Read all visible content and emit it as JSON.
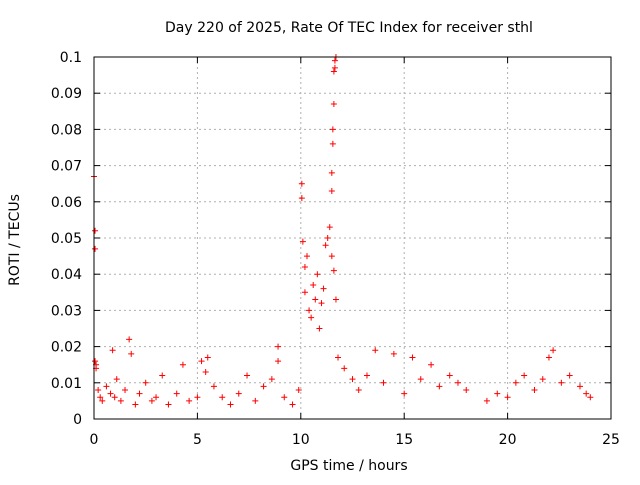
{
  "chart_data": {
    "type": "scatter",
    "title": "Day 220 of 2025, Rate Of TEC Index for receiver sthl",
    "xlabel": "GPS time / hours",
    "ylabel": "ROTI / TECUs",
    "xlim": [
      0,
      25
    ],
    "ylim": [
      0,
      0.1
    ],
    "x_ticks": [
      0,
      5,
      10,
      15,
      20,
      25
    ],
    "x_tick_labels": [
      "0",
      "5",
      "10",
      "15",
      "20",
      "25"
    ],
    "y_ticks": [
      0,
      0.01,
      0.02,
      0.03,
      0.04,
      0.05,
      0.06,
      0.07,
      0.08,
      0.09,
      0.1
    ],
    "y_tick_labels": [
      "0",
      "0.01",
      "0.02",
      "0.03",
      "0.04",
      "0.05",
      "0.06",
      "0.07",
      "0.08",
      "0.09",
      "0.1"
    ],
    "grid": true,
    "marker": "+",
    "marker_color": "#ff0000",
    "series": [
      {
        "points": [
          [
            0.0,
            0.067
          ],
          [
            0.05,
            0.052
          ],
          [
            0.05,
            0.047
          ],
          [
            0.05,
            0.016
          ],
          [
            0.1,
            0.015
          ],
          [
            0.1,
            0.014
          ],
          [
            0.2,
            0.008
          ],
          [
            0.3,
            0.006
          ],
          [
            0.4,
            0.005
          ],
          [
            0.6,
            0.009
          ],
          [
            0.8,
            0.007
          ],
          [
            0.9,
            0.019
          ],
          [
            1.0,
            0.006
          ],
          [
            1.1,
            0.011
          ],
          [
            1.3,
            0.005
          ],
          [
            1.5,
            0.008
          ],
          [
            1.7,
            0.022
          ],
          [
            1.8,
            0.018
          ],
          [
            2.0,
            0.004
          ],
          [
            2.2,
            0.007
          ],
          [
            2.5,
            0.01
          ],
          [
            2.8,
            0.005
          ],
          [
            3.0,
            0.006
          ],
          [
            3.3,
            0.012
          ],
          [
            3.6,
            0.004
          ],
          [
            4.0,
            0.007
          ],
          [
            4.3,
            0.015
          ],
          [
            4.6,
            0.005
          ],
          [
            5.0,
            0.006
          ],
          [
            5.2,
            0.016
          ],
          [
            5.4,
            0.013
          ],
          [
            5.5,
            0.017
          ],
          [
            5.8,
            0.009
          ],
          [
            6.2,
            0.006
          ],
          [
            6.6,
            0.004
          ],
          [
            7.0,
            0.007
          ],
          [
            7.4,
            0.012
          ],
          [
            7.8,
            0.005
          ],
          [
            8.2,
            0.009
          ],
          [
            8.6,
            0.011
          ],
          [
            8.9,
            0.02
          ],
          [
            8.9,
            0.016
          ],
          [
            9.2,
            0.006
          ],
          [
            9.6,
            0.004
          ],
          [
            9.9,
            0.008
          ],
          [
            10.05,
            0.061
          ],
          [
            10.05,
            0.065
          ],
          [
            10.1,
            0.049
          ],
          [
            10.2,
            0.042
          ],
          [
            10.3,
            0.045
          ],
          [
            10.2,
            0.035
          ],
          [
            10.4,
            0.03
          ],
          [
            10.5,
            0.028
          ],
          [
            10.6,
            0.037
          ],
          [
            10.7,
            0.033
          ],
          [
            10.8,
            0.04
          ],
          [
            10.9,
            0.025
          ],
          [
            11.0,
            0.032
          ],
          [
            11.1,
            0.036
          ],
          [
            11.2,
            0.048
          ],
          [
            11.3,
            0.05
          ],
          [
            11.4,
            0.053
          ],
          [
            11.5,
            0.045
          ],
          [
            11.5,
            0.063
          ],
          [
            11.5,
            0.068
          ],
          [
            11.55,
            0.076
          ],
          [
            11.55,
            0.08
          ],
          [
            11.6,
            0.087
          ],
          [
            11.6,
            0.096
          ],
          [
            11.65,
            0.097
          ],
          [
            11.65,
            0.099
          ],
          [
            11.7,
            0.1
          ],
          [
            11.6,
            0.041
          ],
          [
            11.7,
            0.033
          ],
          [
            11.8,
            0.017
          ],
          [
            12.1,
            0.014
          ],
          [
            12.5,
            0.011
          ],
          [
            12.8,
            0.008
          ],
          [
            13.2,
            0.012
          ],
          [
            13.6,
            0.019
          ],
          [
            14.0,
            0.01
          ],
          [
            14.5,
            0.018
          ],
          [
            15.0,
            0.007
          ],
          [
            15.4,
            0.017
          ],
          [
            15.8,
            0.011
          ],
          [
            16.3,
            0.015
          ],
          [
            16.7,
            0.009
          ],
          [
            17.2,
            0.012
          ],
          [
            17.6,
            0.01
          ],
          [
            18.0,
            0.008
          ],
          [
            19.0,
            0.005
          ],
          [
            19.5,
            0.007
          ],
          [
            20.0,
            0.006
          ],
          [
            20.4,
            0.01
          ],
          [
            20.8,
            0.012
          ],
          [
            21.3,
            0.008
          ],
          [
            21.7,
            0.011
          ],
          [
            22.0,
            0.017
          ],
          [
            22.2,
            0.019
          ],
          [
            22.6,
            0.01
          ],
          [
            23.0,
            0.012
          ],
          [
            23.5,
            0.009
          ],
          [
            23.8,
            0.007
          ],
          [
            24.0,
            0.006
          ]
        ]
      }
    ]
  }
}
